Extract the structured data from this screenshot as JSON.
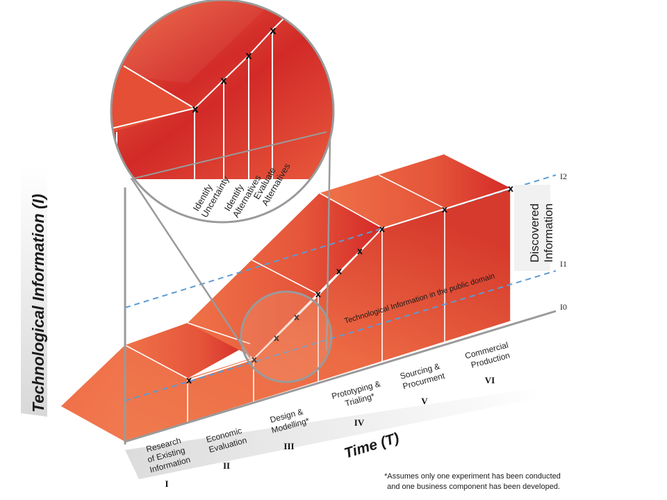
{
  "axes": {
    "y_label": "Technological Information (I)",
    "x_label": "Time (T)",
    "levels": [
      "I0",
      "I1",
      "I2"
    ]
  },
  "stages": [
    {
      "numeral": "I",
      "lines": [
        "Research",
        "of Existing",
        "Information"
      ]
    },
    {
      "numeral": "II",
      "lines": [
        "Economic",
        "Evaluation"
      ]
    },
    {
      "numeral": "III",
      "lines": [
        "Design &",
        "Modelling*"
      ]
    },
    {
      "numeral": "IV",
      "lines": [
        "Prototyping &",
        "Trialing*"
      ]
    },
    {
      "numeral": "V",
      "lines": [
        "Sourcing &",
        "Procurment"
      ]
    },
    {
      "numeral": "VI",
      "lines": [
        "Commercial",
        "Production"
      ]
    }
  ],
  "zoom_steps": [
    {
      "lines": [
        "Identify",
        "Uncertainty"
      ]
    },
    {
      "lines": [
        "Identify",
        "Alternatives"
      ]
    },
    {
      "lines": [
        "Evaluate",
        "Alternatives"
      ]
    }
  ],
  "annotations": {
    "public_domain": "Technological Information in the public domain",
    "discovered": [
      "Discovered",
      "Information"
    ],
    "footnote": [
      "*Assumes only one experiment has been conducted",
      "and one business component has been developed."
    ]
  },
  "colors": {
    "orange": "#ee6b45",
    "dark_red": "#d22a28",
    "dashed": "#5b9bd5",
    "grey": "#999999"
  }
}
